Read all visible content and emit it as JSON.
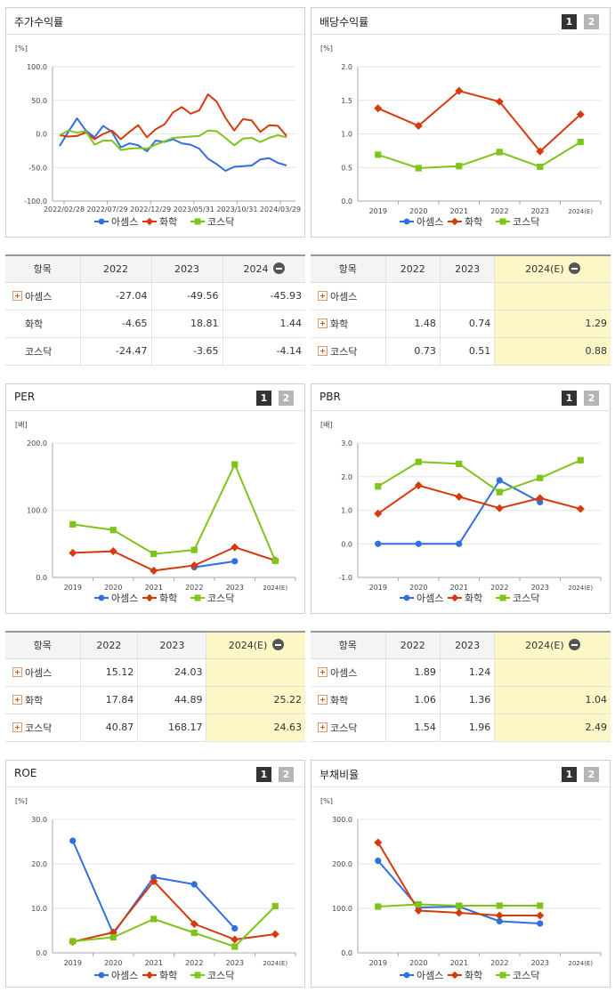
{
  "panels": {
    "stock": {
      "title": "주가수익률",
      "unit": "[%]"
    },
    "dividend": {
      "title": "배당수익률",
      "unit": "[%]"
    },
    "per": {
      "title": "PER",
      "unit": "[배]"
    },
    "pbr": {
      "title": "PBR",
      "unit": "[배]"
    },
    "roe": {
      "title": "ROE",
      "unit": "[%]"
    },
    "debt": {
      "title": "부채비율",
      "unit": "[%]"
    }
  },
  "buttons": {
    "one": "1",
    "two": "2"
  },
  "colors": {
    "s1": "#2f6fe0",
    "s2": "#d63a0c",
    "s3": "#7dc41b"
  },
  "chart_data": [
    {
      "id": "stock",
      "type": "line",
      "ylabel": "[%]",
      "ylim": [
        -100,
        100
      ],
      "yticks": [
        "100.0",
        "50.0",
        "0.0",
        "-50.0",
        "-100.0"
      ],
      "xlabels": [
        "2022/02/28",
        "2022/07/29",
        "2022/12/29",
        "2023/05/31",
        "2023/10/31",
        "2024/03/29"
      ],
      "series": [
        {
          "name": "아셈스",
          "values": [
            -18,
            3,
            23,
            5,
            -5,
            12,
            3,
            -20,
            -14,
            -17,
            -26,
            -10,
            -12,
            -8,
            -14,
            -16,
            -22,
            -37,
            -45,
            -55,
            -49,
            -48,
            -47,
            -38,
            -36,
            -43,
            -47
          ]
        },
        {
          "name": "화학",
          "values": [
            -2,
            -4,
            -3,
            2,
            -8,
            0,
            5,
            -8,
            3,
            13,
            -5,
            7,
            14,
            32,
            40,
            30,
            35,
            59,
            48,
            24,
            5,
            22,
            20,
            3,
            13,
            12,
            -3
          ]
        },
        {
          "name": "코스닥",
          "values": [
            -2,
            5,
            2,
            4,
            -16,
            -10,
            -10,
            -24,
            -22,
            -21,
            -22,
            -16,
            -11,
            -6,
            -5,
            -4,
            -3,
            5,
            4,
            -6,
            -17,
            -7,
            -6,
            -12,
            -6,
            -2,
            -5
          ]
        }
      ],
      "legend": [
        "아셈스",
        "화학",
        "코스닥"
      ]
    },
    {
      "id": "dividend",
      "type": "line",
      "ylabel": "[%]",
      "ylim": [
        0,
        2
      ],
      "yticks": [
        "2.0",
        "1.5",
        "1.0",
        "0.5",
        "0.0"
      ],
      "categories": [
        "2019",
        "2020",
        "2021",
        "2022",
        "2023",
        "2024(E)"
      ],
      "series": [
        {
          "name": "화학",
          "values": [
            1.38,
            1.12,
            1.64,
            1.48,
            0.74,
            1.29
          ]
        },
        {
          "name": "코스닥",
          "values": [
            0.69,
            0.49,
            0.52,
            0.73,
            0.51,
            0.88
          ]
        }
      ],
      "legend": [
        "아셈스",
        "화학",
        "코스닥"
      ]
    },
    {
      "id": "per",
      "type": "line",
      "ylabel": "[배]",
      "ylim": [
        0,
        200
      ],
      "yticks": [
        "200.0",
        "100.0",
        "0.0"
      ],
      "categories": [
        "2019",
        "2020",
        "2021",
        "2022",
        "2023",
        "2024(E)"
      ],
      "series": [
        {
          "name": "아셈스",
          "values": [
            null,
            null,
            null,
            15.12,
            24.03,
            null
          ]
        },
        {
          "name": "화학",
          "values": [
            36.5,
            39,
            10,
            17.84,
            44.89,
            25.22
          ]
        },
        {
          "name": "코스닥",
          "values": [
            79,
            70.5,
            35,
            40.87,
            168.17,
            24.63
          ]
        }
      ],
      "legend": [
        "아셈스",
        "화학",
        "코스닥"
      ]
    },
    {
      "id": "pbr",
      "type": "line",
      "ylabel": "[배]",
      "ylim": [
        -1,
        3
      ],
      "yticks": [
        "3.0",
        "2.0",
        "1.0",
        "0.0",
        "-1.0"
      ],
      "categories": [
        "2019",
        "2020",
        "2021",
        "2022",
        "2023",
        "2024(E)"
      ],
      "series": [
        {
          "name": "아셈스",
          "values": [
            0,
            0,
            0,
            1.89,
            1.24,
            null
          ]
        },
        {
          "name": "화학",
          "values": [
            0.9,
            1.74,
            1.4,
            1.06,
            1.36,
            1.04
          ]
        },
        {
          "name": "코스닥",
          "values": [
            1.71,
            2.44,
            2.38,
            1.54,
            1.96,
            2.49
          ]
        }
      ],
      "legend": [
        "아셈스",
        "화학",
        "코스닥"
      ]
    },
    {
      "id": "roe",
      "type": "line",
      "ylabel": "[%]",
      "ylim": [
        0,
        30
      ],
      "yticks": [
        "30.0",
        "20.0",
        "10.0",
        "0.0"
      ],
      "categories": [
        "2019",
        "2020",
        "2021",
        "2022",
        "2023",
        "2024(E)"
      ],
      "series": [
        {
          "name": "아셈스",
          "values": [
            25.2,
            4.3,
            17,
            15.4,
            5.5,
            null
          ]
        },
        {
          "name": "화학",
          "values": [
            2.5,
            4.6,
            16.1,
            6.5,
            3,
            4.2
          ]
        },
        {
          "name": "코스닥",
          "values": [
            2.6,
            3.5,
            7.6,
            4.5,
            1.4,
            10.5
          ]
        }
      ],
      "legend": [
        "아셈스",
        "화학",
        "코스닥"
      ]
    },
    {
      "id": "debt",
      "type": "line",
      "ylabel": "[%]",
      "ylim": [
        0,
        300
      ],
      "yticks": [
        "300.0",
        "200.0",
        "100.0",
        "0.0"
      ],
      "categories": [
        "2019",
        "2020",
        "2021",
        "2022",
        "2023",
        "2024(E)"
      ],
      "series": [
        {
          "name": "아셈스",
          "values": [
            207,
            102,
            104,
            71,
            66,
            null
          ]
        },
        {
          "name": "화학",
          "values": [
            248,
            95,
            90,
            84,
            84,
            null
          ]
        },
        {
          "name": "코스닥",
          "values": [
            104,
            109,
            106,
            106,
            106,
            null
          ]
        }
      ],
      "legend": [
        "아셈스",
        "화학",
        "코스닥"
      ]
    }
  ],
  "tables": {
    "stock": {
      "headers": [
        "항목",
        "2022",
        "2023",
        "2024"
      ],
      "rows": [
        {
          "label": "아셈스",
          "values": [
            "-27.04",
            "-49.56",
            "-45.93"
          ],
          "plus": true
        },
        {
          "label": "화학",
          "values": [
            "-4.65",
            "18.81",
            "1.44"
          ],
          "plus": false
        },
        {
          "label": "코스닥",
          "values": [
            "-24.47",
            "-3.65",
            "-4.14"
          ],
          "plus": false
        }
      ]
    },
    "dividend": {
      "headers": [
        "항목",
        "2022",
        "2023",
        "2024(E)"
      ],
      "rows": [
        {
          "label": "아셈스",
          "values": [
            "",
            "",
            ""
          ],
          "plus": true
        },
        {
          "label": "화학",
          "values": [
            "1.48",
            "0.74",
            "1.29"
          ],
          "plus": true
        },
        {
          "label": "코스닥",
          "values": [
            "0.73",
            "0.51",
            "0.88"
          ],
          "plus": true
        }
      ]
    },
    "per": {
      "headers": [
        "항목",
        "2022",
        "2023",
        "2024(E)"
      ],
      "rows": [
        {
          "label": "아셈스",
          "values": [
            "15.12",
            "24.03",
            ""
          ],
          "plus": true
        },
        {
          "label": "화학",
          "values": [
            "17.84",
            "44.89",
            "25.22"
          ],
          "plus": true
        },
        {
          "label": "코스닥",
          "values": [
            "40.87",
            "168.17",
            "24.63"
          ],
          "plus": true
        }
      ]
    },
    "pbr": {
      "headers": [
        "항목",
        "2022",
        "2023",
        "2024(E)"
      ],
      "rows": [
        {
          "label": "아셈스",
          "values": [
            "1.89",
            "1.24",
            ""
          ],
          "plus": true
        },
        {
          "label": "화학",
          "values": [
            "1.06",
            "1.36",
            "1.04"
          ],
          "plus": true
        },
        {
          "label": "코스닥",
          "values": [
            "1.54",
            "1.96",
            "2.49"
          ],
          "plus": true
        }
      ]
    }
  }
}
